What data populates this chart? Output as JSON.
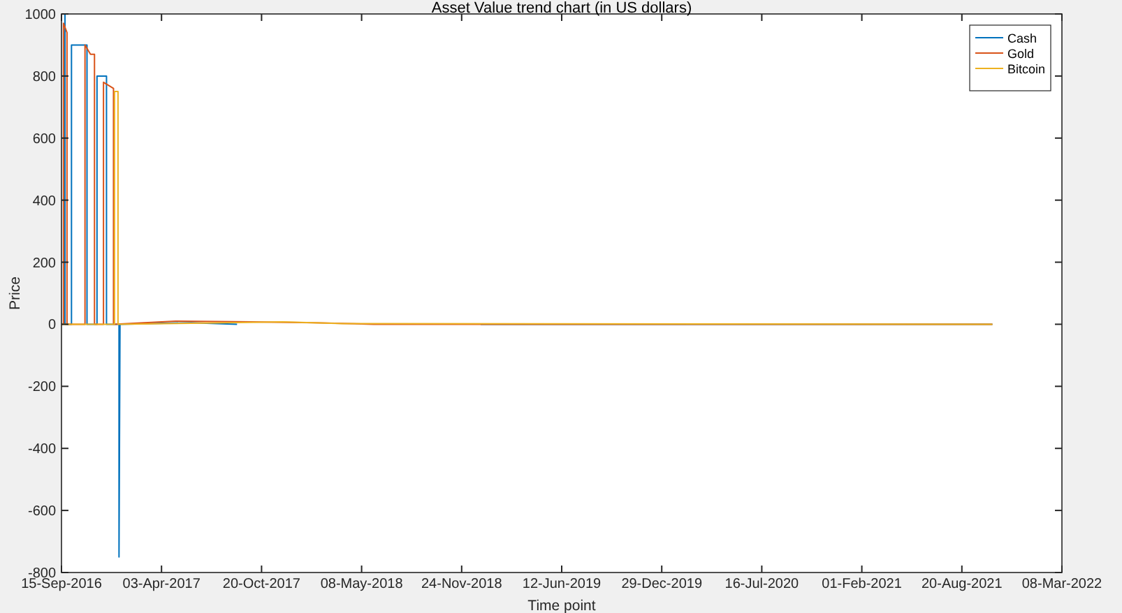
{
  "chart_data": {
    "type": "line",
    "title": "Asset Value trend chart (in US dollars)",
    "xlabel": "Time point",
    "ylabel": "Price",
    "xlim": [
      "2016-09-15",
      "2022-03-08"
    ],
    "xticks": [
      {
        "value": "2016-09-15",
        "label": "15-Sep-2016"
      },
      {
        "value": "2017-04-03",
        "label": "03-Apr-2017"
      },
      {
        "value": "2017-10-20",
        "label": "20-Oct-2017"
      },
      {
        "value": "2018-05-08",
        "label": "08-May-2018"
      },
      {
        "value": "2018-11-24",
        "label": "24-Nov-2018"
      },
      {
        "value": "2019-06-12",
        "label": "12-Jun-2019"
      },
      {
        "value": "2019-12-29",
        "label": "29-Dec-2019"
      },
      {
        "value": "2020-07-16",
        "label": "16-Jul-2020"
      },
      {
        "value": "2021-02-01",
        "label": "01-Feb-2021"
      },
      {
        "value": "2021-08-20",
        "label": "20-Aug-2021"
      },
      {
        "value": "2022-03-08",
        "label": "08-Mar-2022"
      }
    ],
    "ylim": [
      -800,
      1000
    ],
    "yticks": [
      -800,
      -600,
      -400,
      -200,
      0,
      200,
      400,
      600,
      800,
      1000
    ],
    "legend": "top right",
    "grid": false,
    "marker": "none",
    "line_style": "solid",
    "series": [
      {
        "name": "Cash",
        "color": "#0072bd",
        "x": [
          "2016-09-15",
          "2016-09-22",
          "2016-09-22",
          "2016-10-05",
          "2016-10-05",
          "2016-11-05",
          "2016-11-05",
          "2016-11-25",
          "2016-11-25",
          "2016-12-14",
          "2016-12-14",
          "2017-01-08",
          "2017-01-08",
          "2017-01-10",
          "2017-06-01",
          "2017-09-01",
          "2018-03-01",
          "2019-01-01",
          "2021-10-20"
        ],
        "values": [
          1000,
          1000,
          0,
          0,
          900,
          900,
          0,
          0,
          800,
          800,
          0,
          0,
          -750,
          0,
          5,
          0,
          null,
          0,
          0
        ]
      },
      {
        "name": "Gold",
        "color": "#d95319",
        "x": [
          "2016-09-15",
          "2016-09-19",
          "2016-09-19",
          "2016-09-26",
          "2016-09-26",
          "2016-11-01",
          "2016-11-01",
          "2016-11-12",
          "2016-11-20",
          "2016-11-20",
          "2016-12-08",
          "2016-12-08",
          "2016-12-28",
          "2016-12-28",
          "2017-05-01",
          "2017-10-01",
          "2018-02-01",
          "2018-06-01",
          "2021-10-20"
        ],
        "values": [
          0,
          0,
          970,
          940,
          0,
          0,
          900,
          870,
          870,
          0,
          0,
          780,
          760,
          0,
          10,
          8,
          5,
          0,
          0
        ]
      },
      {
        "name": "Bitcoin",
        "color": "#edb120",
        "x": [
          "2016-09-15",
          "2016-12-30",
          "2016-12-30",
          "2017-01-06",
          "2017-01-06",
          "2017-06-01",
          "2017-12-01",
          "2018-04-01",
          "2021-10-20"
        ],
        "values": [
          0,
          0,
          750,
          750,
          0,
          3,
          8,
          2,
          0
        ]
      }
    ]
  }
}
